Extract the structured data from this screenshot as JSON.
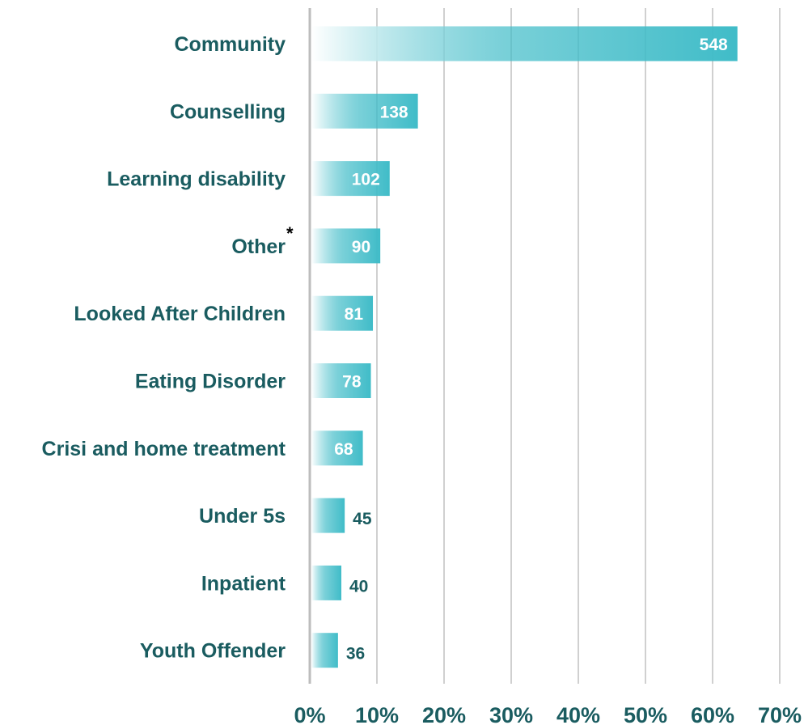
{
  "chart_data": {
    "type": "bar",
    "orientation": "horizontal",
    "categories": [
      "Community",
      "Counselling",
      "Learning disability",
      "Other",
      "Looked After Children",
      "Eating Disorder",
      "Crisi and home treatment",
      "Under 5s",
      "Inpatient",
      "Youth Offender"
    ],
    "category_notes": [
      "",
      "",
      "",
      "*",
      "",
      "",
      "",
      "",
      "",
      ""
    ],
    "series": [
      {
        "percent": [
          63.7,
          16.1,
          11.9,
          10.5,
          9.4,
          9.1,
          7.9,
          5.2,
          4.7,
          4.2
        ],
        "data_labels": [
          "548",
          "138",
          "102",
          "90",
          "81",
          "78",
          "68",
          "45",
          "40",
          "36"
        ]
      }
    ],
    "xlim": [
      0,
      70
    ],
    "x_ticks": [
      "0%",
      "10%",
      "20%",
      "30%",
      "40%",
      "50%",
      "60%",
      "70%"
    ],
    "grid": true,
    "legend": "none",
    "colors": {
      "bar": "#40bcc8",
      "bar_fade": "#ffffff",
      "category_text": "#1a5c60",
      "label_inside": "#ffffff",
      "label_outside": "#1a5c60",
      "tick_text": "#1a5c60",
      "grid": "#d0d0d0",
      "axis": "#bdbdbd"
    }
  }
}
